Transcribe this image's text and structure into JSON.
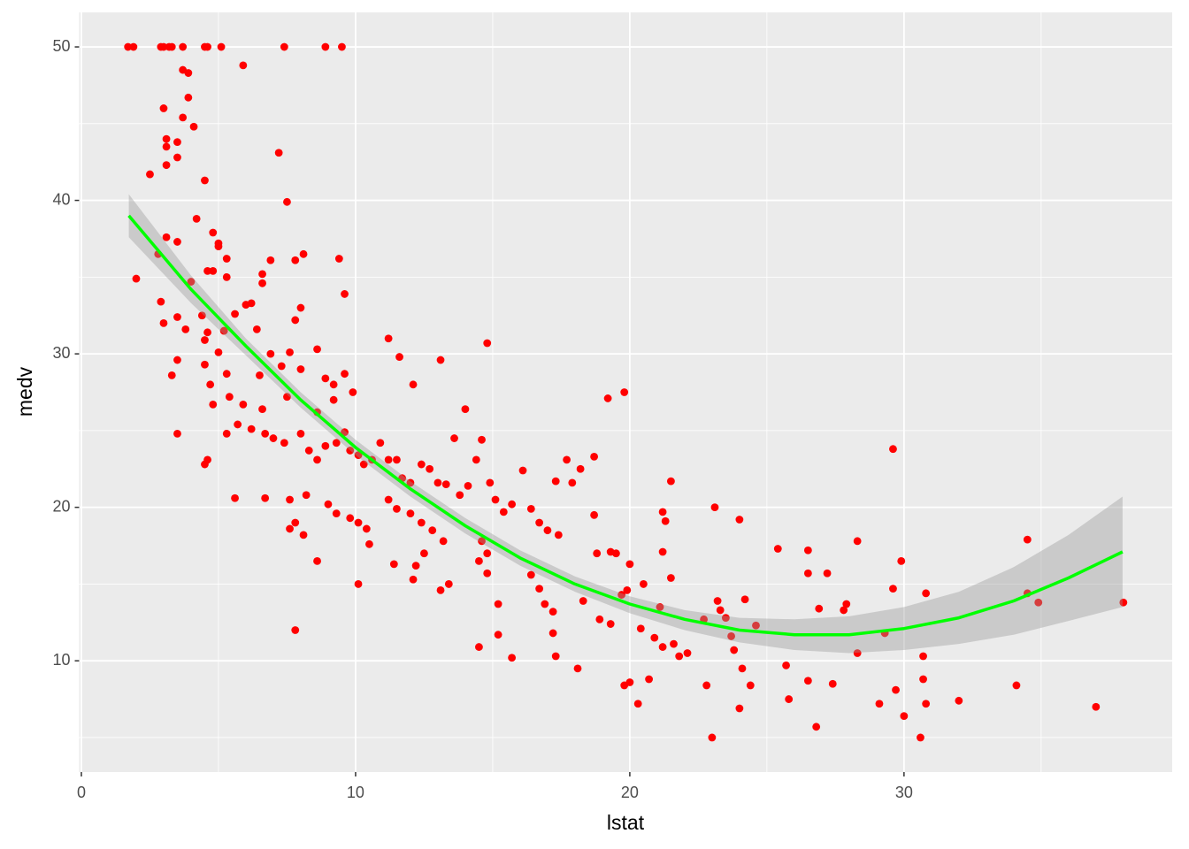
{
  "chart_data": {
    "type": "scatter",
    "x_label": "lstat",
    "y_label": "medv",
    "color": "#ff0000",
    "x": [
      1.7,
      1.9,
      2.9,
      3.0,
      3.2,
      3.3,
      3.7,
      4.5,
      4.6,
      5.1,
      7.4,
      8.9,
      9.5,
      5.9,
      3.7,
      3.9,
      3.9,
      4.1,
      3.0,
      3.7,
      3.1,
      3.1,
      3.5,
      3.5,
      3.1,
      2.5,
      4.5,
      7.2,
      7.5,
      4.2,
      4.8,
      5.0,
      5.0,
      3.1,
      3.5,
      2.8,
      2.0,
      8.1,
      7.8,
      6.9,
      9.4,
      9.6,
      5.3,
      4.6,
      4.8,
      5.3,
      6.6,
      6.6,
      4.0,
      2.9,
      5.6,
      6.0,
      6.2,
      8.0,
      7.8,
      3.5,
      4.4,
      3.0,
      3.8,
      4.6,
      6.4,
      4.5,
      5.2,
      11.2,
      14.8,
      8.6,
      7.6,
      6.9,
      5.0,
      4.5,
      3.5,
      11.6,
      13.1,
      9.6,
      8.9,
      9.2,
      6.5,
      5.3,
      4.7,
      3.3,
      7.3,
      8.0,
      12.1,
      19.8,
      19.2,
      9.9,
      7.5,
      6.6,
      5.4,
      5.9,
      4.8,
      14.0,
      8.6,
      9.2,
      3.5,
      4.6,
      4.5,
      5.3,
      5.7,
      6.2,
      6.7,
      7.0,
      7.4,
      8.0,
      8.3,
      8.6,
      8.9,
      9.3,
      9.6,
      9.8,
      10.1,
      10.3,
      10.6,
      10.9,
      11.2,
      11.5,
      11.7,
      12.0,
      12.4,
      12.7,
      13.0,
      13.3,
      13.6,
      13.8,
      14.1,
      14.4,
      14.6,
      14.9,
      5.6,
      6.7,
      7.6,
      8.2,
      9.0,
      9.3,
      9.8,
      10.1,
      10.4,
      7.8,
      8.1,
      7.6,
      10.5,
      10.1,
      11.2,
      11.5,
      12.0,
      12.4,
      12.8,
      13.2,
      12.5,
      12.2,
      11.4,
      12.1,
      13.1,
      13.4,
      8.6,
      7.8,
      15.1,
      15.4,
      15.7,
      16.1,
      16.4,
      16.7,
      17.0,
      17.4,
      17.3,
      17.7,
      18.2,
      17.9,
      18.7,
      18.7,
      14.6,
      14.8,
      14.5,
      14.8,
      15.2,
      14.5,
      15.2,
      15.7,
      16.4,
      16.7,
      16.9,
      17.2,
      17.3,
      17.2,
      18.1,
      18.3,
      18.8,
      19.3,
      19.5,
      20.0,
      19.9,
      19.7,
      18.9,
      19.3,
      20.5,
      20.4,
      19.8,
      20.0,
      20.3,
      20.7,
      21.2,
      21.3,
      21.2,
      21.5,
      21.5,
      21.1,
      20.9,
      21.2,
      21.6,
      21.8,
      22.1,
      22.7,
      22.8,
      23.1,
      23.2,
      23.3,
      23.5,
      23.7,
      23.8,
      24.0,
      24.2,
      24.1,
      24.0,
      24.4,
      23.0,
      24.6,
      25.4,
      25.7,
      25.8,
      26.5,
      26.5,
      26.9,
      26.5,
      26.8,
      27.2,
      27.4,
      27.8,
      27.9,
      28.3,
      28.3,
      29.1,
      29.3,
      29.6,
      29.6,
      29.7,
      29.9,
      30.0,
      30.7,
      30.7,
      30.6,
      30.8,
      30.8,
      32.0,
      34.1,
      34.5,
      34.5,
      34.9,
      37.0,
      38.0
    ],
    "values": [
      50,
      50,
      50,
      50,
      50,
      50,
      50,
      50,
      50,
      50,
      50,
      50,
      50,
      48.8,
      48.5,
      48.3,
      46.7,
      44.8,
      46.0,
      45.4,
      44.0,
      43.5,
      43.8,
      42.8,
      42.3,
      41.7,
      41.3,
      43.1,
      39.9,
      38.8,
      37.9,
      37.2,
      37.0,
      37.6,
      37.3,
      36.5,
      34.9,
      36.5,
      36.1,
      36.1,
      36.2,
      33.9,
      36.2,
      35.4,
      35.4,
      35.0,
      35.2,
      34.6,
      34.7,
      33.4,
      32.6,
      33.2,
      33.3,
      33.0,
      32.2,
      32.4,
      32.5,
      32.0,
      31.6,
      31.4,
      31.6,
      30.9,
      31.5,
      31.0,
      30.7,
      30.3,
      30.1,
      30.0,
      30.1,
      29.3,
      29.6,
      29.8,
      29.6,
      28.7,
      28.4,
      28.0,
      28.6,
      28.7,
      28.0,
      28.6,
      29.2,
      29.0,
      28.0,
      27.5,
      27.1,
      27.5,
      27.2,
      26.4,
      27.2,
      26.7,
      26.7,
      26.4,
      26.2,
      27.0,
      24.8,
      23.1,
      22.8,
      24.8,
      25.4,
      25.1,
      24.8,
      24.5,
      24.2,
      24.8,
      23.7,
      23.1,
      24.0,
      24.2,
      24.9,
      23.7,
      23.4,
      22.8,
      23.1,
      24.2,
      23.1,
      23.1,
      21.9,
      21.6,
      22.8,
      22.5,
      21.6,
      21.5,
      24.5,
      20.8,
      21.4,
      23.1,
      24.4,
      21.6,
      20.6,
      20.6,
      20.5,
      20.8,
      20.2,
      19.6,
      19.3,
      19.0,
      18.6,
      19.0,
      18.2,
      18.6,
      17.6,
      15.0,
      20.5,
      19.9,
      19.6,
      19.0,
      18.5,
      17.8,
      17.0,
      16.2,
      16.3,
      15.3,
      14.6,
      15.0,
      16.5,
      12.0,
      20.5,
      19.7,
      20.2,
      22.4,
      19.9,
      19.0,
      18.5,
      18.2,
      21.7,
      23.1,
      22.5,
      21.6,
      23.3,
      19.5,
      17.8,
      17.0,
      16.5,
      15.7,
      13.7,
      10.9,
      11.7,
      10.2,
      15.6,
      14.7,
      13.7,
      13.2,
      10.3,
      11.8,
      9.5,
      13.9,
      17.0,
      17.1,
      17.0,
      16.3,
      14.6,
      14.3,
      12.7,
      12.4,
      15.0,
      12.1,
      8.4,
      8.6,
      7.2,
      8.8,
      19.7,
      19.1,
      17.1,
      21.7,
      15.4,
      13.5,
      11.5,
      10.9,
      11.1,
      10.3,
      10.5,
      12.7,
      8.4,
      20.0,
      13.9,
      13.3,
      12.8,
      11.6,
      10.7,
      19.2,
      14.0,
      9.5,
      6.9,
      8.4,
      5.0,
      12.3,
      17.3,
      9.7,
      7.5,
      17.2,
      15.7,
      13.4,
      8.7,
      5.7,
      15.7,
      8.5,
      13.3,
      13.7,
      17.8,
      10.5,
      7.2,
      11.8,
      14.7,
      23.8,
      8.1,
      16.5,
      6.4,
      10.3,
      8.8,
      5.0,
      7.2,
      14.4,
      7.4,
      8.4,
      17.9,
      14.4,
      13.8,
      7.0,
      13.8
    ],
    "fit": {
      "color": "#00ff00",
      "band_color": "#999999",
      "x": [
        1.73,
        4,
        6,
        8,
        10,
        12,
        14,
        16,
        18,
        20,
        22,
        24,
        26,
        28,
        30,
        32,
        34,
        36,
        37.97
      ],
      "y": [
        39.0,
        34.2,
        30.5,
        27.0,
        23.9,
        21.2,
        18.8,
        16.7,
        15.0,
        13.7,
        12.7,
        12.0,
        11.7,
        11.7,
        12.1,
        12.8,
        13.9,
        15.4,
        17.1
      ],
      "lower": [
        37.6,
        33.3,
        29.9,
        26.5,
        23.4,
        20.7,
        18.3,
        16.2,
        14.5,
        13.1,
        12.0,
        11.2,
        10.7,
        10.5,
        10.7,
        11.1,
        11.7,
        12.6,
        13.5
      ],
      "upper": [
        40.4,
        35.1,
        31.0,
        27.5,
        24.4,
        21.7,
        19.3,
        17.2,
        15.5,
        14.2,
        13.3,
        12.8,
        12.7,
        12.9,
        13.5,
        14.5,
        16.1,
        18.2,
        20.7
      ]
    },
    "xlim": [
      -0.08,
      39.78
    ],
    "ylim": [
      2.75,
      52.25
    ],
    "xticks": [
      0,
      10,
      20,
      30
    ],
    "yticks": [
      10,
      20,
      30,
      40,
      50
    ],
    "x_minor_ticks": [
      5,
      15,
      25,
      35
    ],
    "y_minor_ticks": [
      5,
      15,
      25,
      35,
      45
    ],
    "grid": true
  }
}
